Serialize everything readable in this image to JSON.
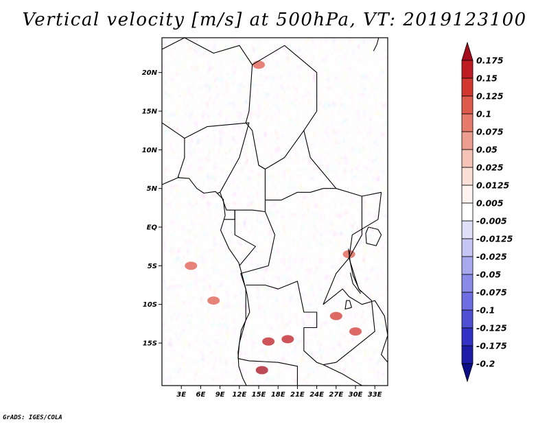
{
  "title": "Vertical velocity [m/s] at 500hPa, VT: 2019123100",
  "credit": "GrADS: IGES/COLA",
  "map": {
    "variable": "vertical velocity",
    "units": "m/s",
    "level": "500hPa",
    "valid_time": "2019123100",
    "lon_range_deg": [
      0,
      35
    ],
    "lat_range_deg": [
      -20.5,
      24.5
    ],
    "lat_ticks": [
      {
        "value": 20,
        "label": "20N"
      },
      {
        "value": 15,
        "label": "15N"
      },
      {
        "value": 10,
        "label": "10N"
      },
      {
        "value": 5,
        "label": "5N"
      },
      {
        "value": 0,
        "label": "EQ"
      },
      {
        "value": -5,
        "label": "5S"
      },
      {
        "value": -10,
        "label": "10S"
      },
      {
        "value": -15,
        "label": "15S"
      }
    ],
    "lon_ticks": [
      {
        "value": 3,
        "label": "3E"
      },
      {
        "value": 6,
        "label": "6E"
      },
      {
        "value": 9,
        "label": "9E"
      },
      {
        "value": 12,
        "label": "12E"
      },
      {
        "value": 15,
        "label": "15E"
      },
      {
        "value": 18,
        "label": "18E"
      },
      {
        "value": 21,
        "label": "21E"
      },
      {
        "value": 24,
        "label": "24E"
      },
      {
        "value": 27,
        "label": "27E"
      },
      {
        "value": 30,
        "label": "30E"
      },
      {
        "value": 33,
        "label": "33E"
      }
    ],
    "boundaries": [
      [
        [
          0,
          23
        ],
        [
          3.5,
          24.5
        ]
      ],
      [
        [
          3.5,
          24.5
        ],
        [
          8,
          22.5
        ],
        [
          12,
          23.5
        ],
        [
          14,
          21
        ],
        [
          19,
          23.5
        ],
        [
          24,
          20
        ],
        [
          24,
          15
        ],
        [
          22,
          12.5
        ],
        [
          23,
          9
        ],
        [
          27,
          5
        ],
        [
          31,
          4
        ],
        [
          34,
          4.5
        ],
        [
          33.5,
          1
        ],
        [
          29.5,
          -1
        ],
        [
          29,
          -4
        ],
        [
          30.5,
          -8
        ],
        [
          32.5,
          -9.5
        ],
        [
          33,
          -13.5
        ],
        [
          30,
          -15.5
        ],
        [
          27,
          -17.5
        ],
        [
          25,
          -17.8
        ]
      ],
      [
        [
          14,
          21
        ],
        [
          13.5,
          15
        ],
        [
          13,
          13.5
        ],
        [
          14,
          12.5
        ],
        [
          15,
          8
        ],
        [
          16,
          7.5
        ],
        [
          19,
          9
        ],
        [
          22,
          12.5
        ]
      ],
      [
        [
          0,
          13.5
        ],
        [
          3.5,
          11.5
        ],
        [
          3.5,
          9
        ],
        [
          2.5,
          6.5
        ],
        [
          2.7,
          6.4
        ]
      ],
      [
        [
          3.5,
          11.5
        ],
        [
          7,
          13
        ],
        [
          13.5,
          13.5
        ],
        [
          13,
          12
        ],
        [
          12,
          9
        ],
        [
          9,
          4.5
        ],
        [
          8.6,
          4.4
        ]
      ],
      [
        [
          9,
          4.5
        ],
        [
          10,
          2.2
        ],
        [
          11.3,
          2.2
        ],
        [
          11.3,
          1
        ],
        [
          9.6,
          1
        ]
      ],
      [
        [
          11.3,
          2.2
        ],
        [
          14,
          2.2
        ],
        [
          16,
          2
        ],
        [
          16,
          3.5
        ],
        [
          18.5,
          3.5
        ],
        [
          21,
          4.5
        ],
        [
          23,
          4.5
        ],
        [
          25,
          5
        ],
        [
          27,
          5
        ]
      ],
      [
        [
          15,
          8
        ],
        [
          16,
          7.5
        ],
        [
          16,
          3.5
        ]
      ],
      [
        [
          11.3,
          2.2
        ],
        [
          11.3,
          -1
        ],
        [
          14.5,
          -2.5
        ],
        [
          12,
          -5
        ]
      ],
      [
        [
          16,
          2
        ],
        [
          17.5,
          -1
        ],
        [
          16.5,
          -5
        ],
        [
          12.2,
          -6
        ]
      ],
      [
        [
          12.2,
          -6
        ],
        [
          13,
          -8
        ],
        [
          13,
          -12
        ],
        [
          12,
          -15
        ],
        [
          11.8,
          -17
        ]
      ],
      [
        [
          13,
          -7.5
        ],
        [
          16,
          -7.5
        ],
        [
          18,
          -8
        ],
        [
          21,
          -7
        ],
        [
          22,
          -11
        ],
        [
          24,
          -11
        ],
        [
          24,
          -13
        ],
        [
          22,
          -13
        ],
        [
          22,
          -16
        ],
        [
          24,
          -17.5
        ],
        [
          25,
          -17.8
        ]
      ],
      [
        [
          11.8,
          -17
        ],
        [
          13.5,
          -17.3
        ],
        [
          18,
          -17.5
        ],
        [
          21,
          -18
        ],
        [
          21,
          -20.5
        ]
      ],
      [
        [
          25,
          -17.8
        ],
        [
          28,
          -19
        ],
        [
          31,
          -20.5
        ]
      ],
      [
        [
          29,
          -4
        ],
        [
          27,
          -6
        ],
        [
          25,
          -10
        ],
        [
          28,
          -8
        ],
        [
          29,
          -9
        ],
        [
          31,
          -10
        ],
        [
          33,
          -9.5
        ]
      ],
      [
        [
          33,
          -9.5
        ],
        [
          34.5,
          -11.5
        ],
        [
          35,
          -14
        ],
        [
          34,
          -16.5
        ],
        [
          35,
          -17.5
        ]
      ],
      [
        [
          31,
          4
        ],
        [
          31,
          -1
        ],
        [
          30,
          -2.5
        ],
        [
          29,
          -4
        ]
      ],
      [
        [
          0,
          5.5
        ],
        [
          2.5,
          6.4
        ],
        [
          4.2,
          6.3
        ],
        [
          5.4,
          5
        ],
        [
          6.5,
          4.4
        ],
        [
          8.3,
          4.6
        ],
        [
          9.5,
          3.6
        ],
        [
          9.8,
          1.5
        ],
        [
          9.1,
          -0.4
        ],
        [
          10.4,
          -2.8
        ],
        [
          11.9,
          -4.6
        ],
        [
          12.4,
          -6.1
        ],
        [
          13.2,
          -8.7
        ],
        [
          13.6,
          -11
        ],
        [
          12.3,
          -13.3
        ],
        [
          11.8,
          -16.2
        ],
        [
          11.9,
          -18
        ],
        [
          12.5,
          -19.5
        ],
        [
          13.1,
          -20.5
        ]
      ],
      [
        [
          28.9,
          -2.8
        ],
        [
          29.2,
          -4.6
        ],
        [
          29.6,
          -6.2
        ],
        [
          30.6,
          -8.1
        ],
        [
          30.9,
          -8.4
        ]
      ],
      [
        [
          30.8,
          -8.6
        ],
        [
          29.6,
          -7.3
        ],
        [
          29.2,
          -5.9
        ]
      ],
      [
        [
          32,
          0
        ],
        [
          33.5,
          -0.3
        ],
        [
          34,
          -1
        ],
        [
          33.2,
          -2.4
        ],
        [
          31.7,
          -2.1
        ],
        [
          31.6,
          -0.8
        ],
        [
          32,
          0
        ]
      ],
      [
        [
          29.4,
          -10.4
        ],
        [
          29.1,
          -9.5
        ],
        [
          28.6,
          -9.5
        ],
        [
          28.4,
          -10.6
        ],
        [
          29.4,
          -10.4
        ]
      ],
      [
        [
          33.6,
          24.5
        ],
        [
          33.3,
          23.6
        ],
        [
          32.8,
          22.8
        ]
      ]
    ]
  },
  "colorbar": {
    "levels": [
      "0.175",
      "0.15",
      "0.125",
      "0.1",
      "0.075",
      "0.05",
      "0.025",
      "0.0125",
      "0.005",
      "-0.005",
      "-0.0125",
      "-0.025",
      "-0.05",
      "-0.075",
      "-0.1",
      "-0.125",
      "-0.175",
      "-0.2"
    ],
    "colors": [
      "#a50d1c",
      "#be1c22",
      "#d23830",
      "#dd5a4c",
      "#e67a6b",
      "#ee9e90",
      "#f6c3b8",
      "#fbe0d8",
      "#fff3f0",
      "#ffffff",
      "#dfdff8",
      "#c6c6f4",
      "#a8a8ee",
      "#8a8ae8",
      "#6e6ee2",
      "#4f4fd4",
      "#3232c6",
      "#1c1ca8",
      "#0c0c86"
    ]
  }
}
